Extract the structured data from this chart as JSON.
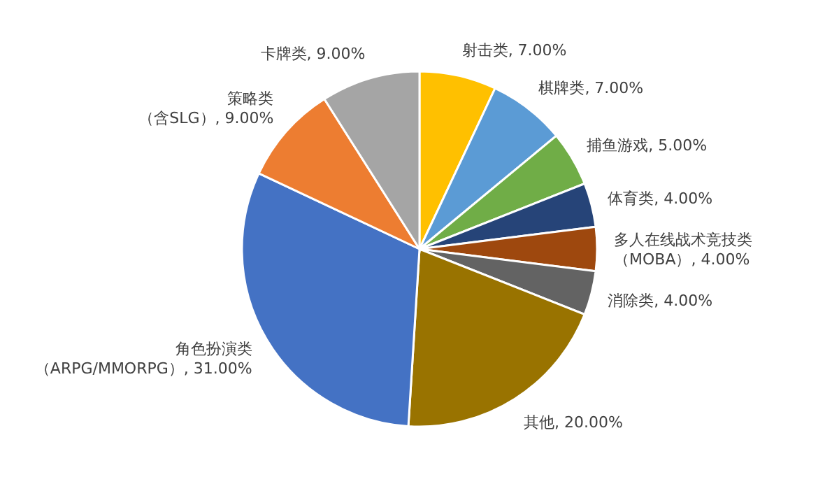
{
  "chart_data": {
    "type": "pie",
    "categories": [
      "射击类",
      "棋牌类",
      "捕鱼游戏",
      "体育类",
      "多人在线战术竞技类（MOBA）",
      "消除类",
      "其他",
      "角色扮演类（ARPG/MMORPG）",
      "策略类（含SLG）",
      "卡牌类"
    ],
    "values": [
      7,
      7,
      5,
      4,
      4,
      4,
      20,
      31,
      9,
      9
    ],
    "colors": [
      "#ffc000",
      "#5b9bd5",
      "#70ad47",
      "#264478",
      "#9e480e",
      "#636363",
      "#997300",
      "#4472c4",
      "#ed7d31",
      "#a5a5a5"
    ],
    "value_labels": [
      "7.00%",
      "7.00%",
      "5.00%",
      "4.00%",
      "4.00%",
      "4.00%",
      "20.00%",
      "31.00%",
      "9.00%",
      "9.00%"
    ]
  }
}
